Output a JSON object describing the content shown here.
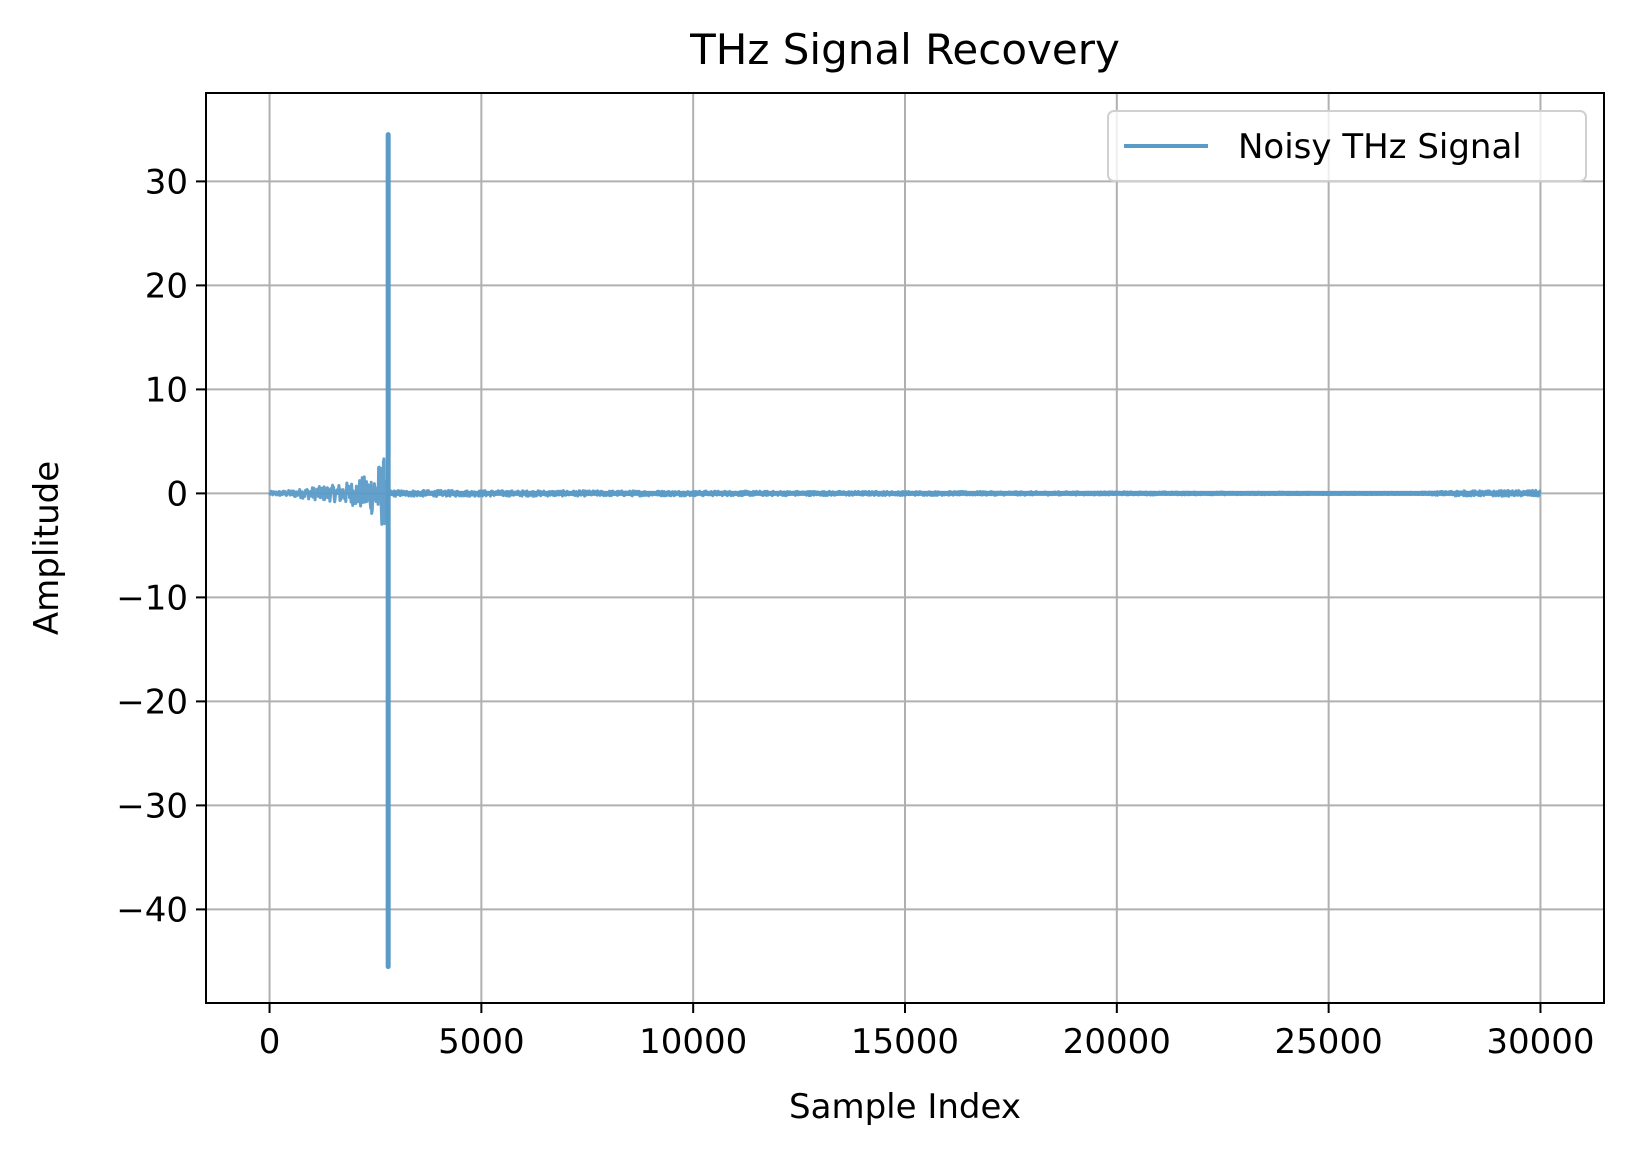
{
  "chart_data": {
    "type": "line",
    "title": "THz Signal Recovery",
    "xlabel": "Sample Index",
    "ylabel": "Amplitude",
    "xlim": [
      -1500,
      31500
    ],
    "ylim": [
      -49,
      38.5
    ],
    "xticks": [
      0,
      5000,
      10000,
      15000,
      20000,
      25000,
      30000
    ],
    "xtick_labels": [
      "0",
      "5000",
      "10000",
      "15000",
      "20000",
      "25000",
      "30000"
    ],
    "yticks": [
      30,
      20,
      10,
      0,
      -10,
      -20,
      -30,
      -40
    ],
    "ytick_labels": [
      "30",
      "20",
      "10",
      "0",
      "−10",
      "−20",
      "−30",
      "−40"
    ],
    "grid": true,
    "legend_position": "top-right",
    "series": [
      {
        "name": "Noisy THz Signal",
        "color": "#5b9bc8",
        "x_range": [
          0,
          30000
        ],
        "peak": {
          "x": 2800,
          "max": 34.5,
          "min": -45.5
        },
        "profile": [
          {
            "x": 0,
            "envelope": 0.2
          },
          {
            "x": 500,
            "envelope": 0.3
          },
          {
            "x": 1000,
            "envelope": 0.6
          },
          {
            "x": 1500,
            "envelope": 0.8
          },
          {
            "x": 2000,
            "envelope": 1.2
          },
          {
            "x": 2400,
            "envelope": 2.0
          },
          {
            "x": 2700,
            "envelope": 3.5
          },
          {
            "x": 2800,
            "envelope": 0.3
          },
          {
            "x": 27000,
            "envelope": 0.1
          },
          {
            "x": 28000,
            "envelope": 0.25
          },
          {
            "x": 30000,
            "envelope": 0.3
          }
        ]
      }
    ]
  }
}
